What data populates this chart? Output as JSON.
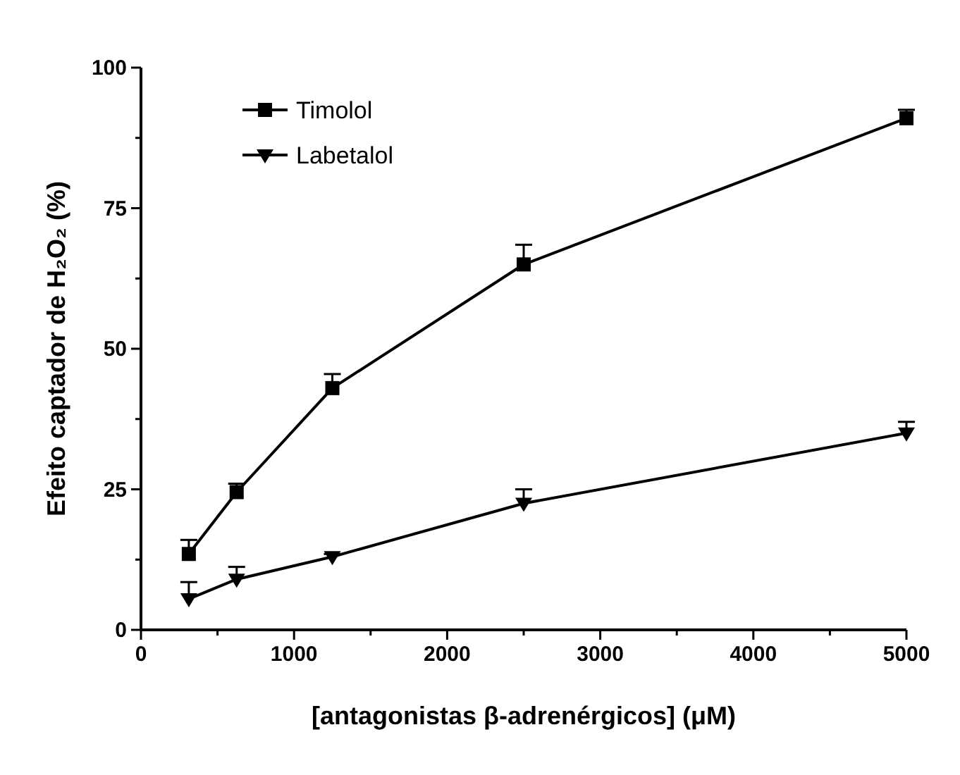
{
  "chart_data": {
    "type": "line",
    "xlabel": "[antagonistas β-adrenérgicos] (μM)",
    "ylabel": "Efeito captador de H₂O₂ (%)",
    "xlim": [
      0,
      5000
    ],
    "ylim": [
      0,
      100
    ],
    "xticks": [
      0,
      {
        "value": 500,
        "label": null
      },
      1000,
      {
        "value": 1500,
        "label": null
      },
      2000,
      {
        "value": 2500,
        "label": null
      },
      3000,
      {
        "value": 3500,
        "label": null
      },
      4000,
      {
        "value": 4500,
        "label": null
      },
      5000
    ],
    "yticks": [
      0,
      {
        "value": 12.5,
        "label": null
      },
      25,
      {
        "value": 37.5,
        "label": null
      },
      50,
      {
        "value": 62.5,
        "label": null
      },
      75,
      {
        "value": 87.5,
        "label": null
      },
      100
    ],
    "x": [
      312.5,
      625,
      1250,
      2500,
      5000
    ],
    "series": [
      {
        "name": "Timolol",
        "color": "#000000",
        "marker": "square",
        "values": [
          13.5,
          24.5,
          43,
          65,
          91
        ],
        "errors": [
          [
            13.5,
            16
          ],
          [
            24.5,
            26
          ],
          [
            43,
            45.5
          ],
          [
            65,
            68.5
          ],
          [
            91,
            92.5
          ]
        ]
      },
      {
        "name": "Labetalol",
        "color": "#000000",
        "marker": "triangle",
        "values": [
          5.5,
          9,
          13,
          22.5,
          35
        ],
        "errors": [
          [
            5.5,
            8.5
          ],
          [
            9,
            11.2
          ],
          [
            13,
            13.5
          ],
          [
            22.5,
            25
          ],
          [
            35,
            37
          ]
        ]
      }
    ],
    "legend": "top left",
    "grid": false
  }
}
